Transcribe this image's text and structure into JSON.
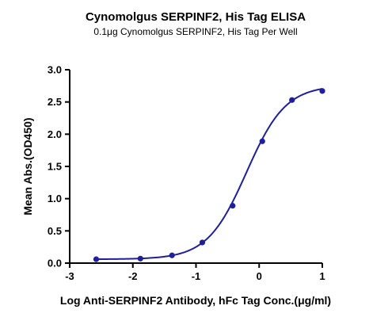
{
  "chart_data": {
    "type": "scatter",
    "title": "Cynomolgus SERPINF2, His Tag ELISA",
    "subtitle": "0.1μg Cynomolgus SERPINF2, His Tag Per Well",
    "xlabel": "Log Anti-SERPINF2 Antibody, hFc Tag Conc.(μg/ml)",
    "ylabel": "Mean Abs.(OD450)",
    "xlim": [
      -3,
      1
    ],
    "ylim": [
      0,
      3.0
    ],
    "xticks": [
      -3,
      -2,
      -1,
      0,
      1
    ],
    "yticks": [
      0.0,
      0.5,
      1.0,
      1.5,
      2.0,
      2.5,
      3.0
    ],
    "xtick_labels": [
      "-3",
      "-2",
      "-1",
      "0",
      "1"
    ],
    "ytick_labels": [
      "0.0",
      "0.5",
      "1.0",
      "1.5",
      "2.0",
      "2.5",
      "3.0"
    ],
    "grid": false,
    "legend": false,
    "series": [
      {
        "x": [
          -2.58,
          -1.88,
          -1.38,
          -0.9,
          -0.42,
          0.05,
          0.52,
          1.0
        ],
        "y": [
          0.06,
          0.07,
          0.12,
          0.32,
          0.89,
          1.89,
          2.53,
          2.67
        ],
        "fit_curve": "4PL",
        "color": "#1f1f99"
      }
    ]
  }
}
